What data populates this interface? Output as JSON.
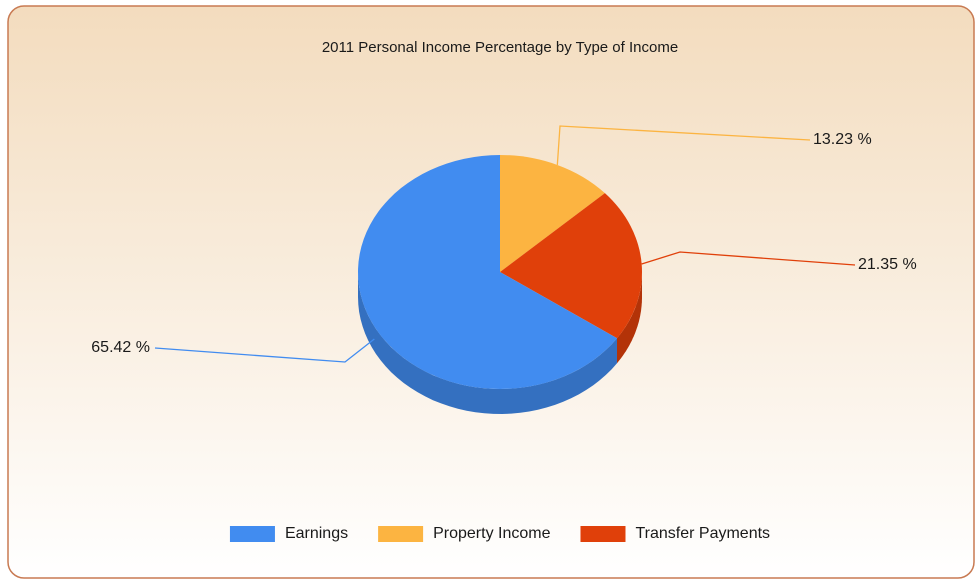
{
  "chart_data": {
    "type": "pie",
    "title": "2011 Personal Income Percentage by Type of Income",
    "categories": [
      "Earnings",
      "Property Income",
      "Transfer Payments"
    ],
    "values": [
      65.42,
      13.23,
      21.35
    ],
    "value_labels": [
      "65.42 %",
      "13.23 %",
      "21.35 %"
    ],
    "colors": [
      "#418cf0",
      "#fcb441",
      "#e0400a"
    ],
    "legend": "bottom"
  }
}
